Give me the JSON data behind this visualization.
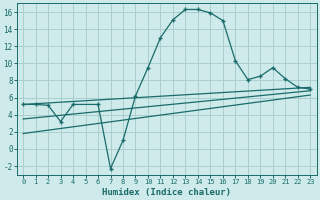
{
  "xlabel": "Humidex (Indice chaleur)",
  "background_color": "#ceeaea",
  "grid_color": "#aacece",
  "line_color": "#1a6b6b",
  "xlim": [
    -0.5,
    23.5
  ],
  "ylim": [
    -3,
    17
  ],
  "xticks": [
    0,
    1,
    2,
    3,
    4,
    5,
    6,
    7,
    8,
    9,
    10,
    11,
    12,
    13,
    14,
    15,
    16,
    17,
    18,
    19,
    20,
    21,
    22,
    23
  ],
  "yticks": [
    -2,
    0,
    2,
    4,
    6,
    8,
    10,
    12,
    14,
    16
  ],
  "series1_x": [
    0,
    1,
    2,
    3,
    4,
    6,
    7,
    8,
    9,
    10,
    11,
    12,
    13,
    14,
    15,
    16,
    17,
    18,
    19,
    20,
    21,
    22,
    23
  ],
  "series1_y": [
    5.2,
    5.2,
    5.1,
    3.2,
    5.2,
    5.2,
    -2.3,
    1.0,
    6.2,
    9.5,
    13.0,
    15.1,
    16.3,
    16.3,
    15.9,
    15.0,
    10.3,
    8.1,
    8.5,
    9.5,
    8.2,
    7.2,
    7.0
  ],
  "series2_x": [
    0,
    23
  ],
  "series2_y": [
    5.2,
    7.2
  ],
  "series3_x": [
    0,
    23
  ],
  "series3_y": [
    3.5,
    6.8
  ],
  "series4_x": [
    0,
    23
  ],
  "series4_y": [
    1.8,
    6.3
  ]
}
